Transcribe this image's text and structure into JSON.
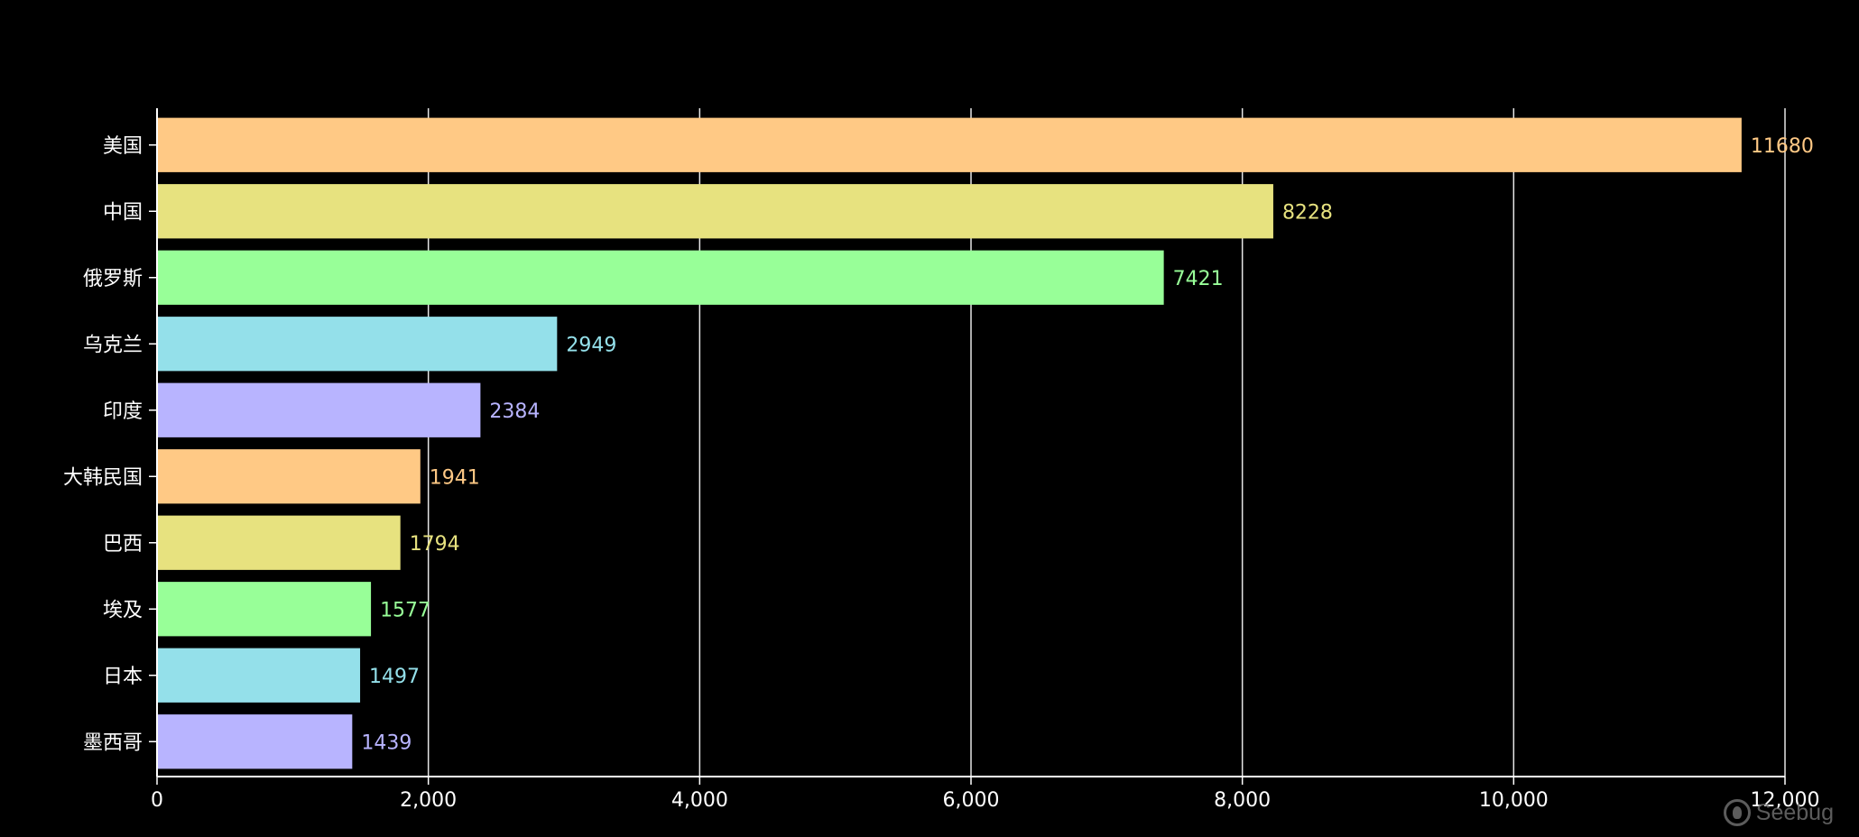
{
  "chart_data": {
    "type": "bar",
    "orientation": "horizontal",
    "categories": [
      "美国",
      "中国",
      "俄罗斯",
      "乌克兰",
      "印度",
      "大韩民国",
      "巴西",
      "埃及",
      "日本",
      "墨西哥"
    ],
    "values": [
      11680,
      8228,
      7421,
      2949,
      2384,
      1941,
      1794,
      1577,
      1497,
      1439
    ],
    "value_labels": [
      "11680",
      "8228",
      "7421",
      "2949",
      "2384",
      "1941",
      "1794",
      "1577",
      "1497",
      "1439"
    ],
    "colors": [
      "#ffc985",
      "#e7e27f",
      "#98ff98",
      "#94e0ea",
      "#b8b4ff",
      "#ffc985",
      "#e7e27f",
      "#98ff98",
      "#94e0ea",
      "#b8b4ff"
    ],
    "xlim": [
      0,
      12000
    ],
    "xticks": [
      0,
      2000,
      4000,
      6000,
      8000,
      10000,
      12000
    ],
    "xtick_labels": [
      "0",
      "2,000",
      "4,000",
      "6,000",
      "8,000",
      "10,000",
      "12,000"
    ],
    "grid": true,
    "background": "#000000",
    "axis_color": "#ffffff",
    "title": "",
    "xlabel": "",
    "ylabel": ""
  },
  "watermark": {
    "text": "Seebug"
  }
}
